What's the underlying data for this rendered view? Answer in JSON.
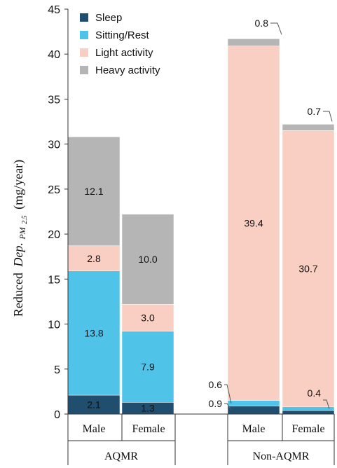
{
  "chart_data": {
    "type": "bar",
    "stacked": true,
    "groups": [
      {
        "label": "AQMR",
        "categories": [
          "Male",
          "Female"
        ]
      },
      {
        "label": "Non-AQMR",
        "categories": [
          "Male",
          "Female"
        ]
      }
    ],
    "categories": [
      "Male",
      "Female",
      "Male",
      "Female"
    ],
    "series": [
      {
        "name": "Sleep",
        "color": "#1f4e6e",
        "values": [
          2.1,
          1.3,
          0.9,
          0.4
        ]
      },
      {
        "name": "Sitting/Rest",
        "color": "#4fc3e8",
        "values": [
          13.8,
          7.9,
          0.6,
          0.4
        ]
      },
      {
        "name": "Light activity",
        "color": "#f8cfc2",
        "values": [
          2.8,
          3.0,
          39.4,
          30.7
        ]
      },
      {
        "name": "Heavy activity",
        "color": "#b5b5b5",
        "values": [
          12.1,
          10.0,
          0.8,
          0.7
        ]
      }
    ],
    "data_labels": [
      [
        "2.1",
        "1.3",
        "0.9",
        ""
      ],
      [
        "13.8",
        "7.9",
        "0.6",
        "0.4"
      ],
      [
        "2.8",
        "3.0",
        "39.4",
        "30.7"
      ],
      [
        "12.1",
        "10.0",
        "0.8",
        "0.7"
      ]
    ],
    "ylabel_prefix": "Reduced",
    "ylabel_var": "Dep.",
    "ylabel_sub": "PM",
    "ylabel_subsub": "2.5",
    "ylabel_unit": "(mg/year)",
    "ylim": [
      0,
      45
    ],
    "yticks": [
      "0",
      "5",
      "10",
      "15",
      "20",
      "25",
      "30",
      "35",
      "40",
      "45"
    ],
    "legend_position": "top-left",
    "grid": false
  }
}
